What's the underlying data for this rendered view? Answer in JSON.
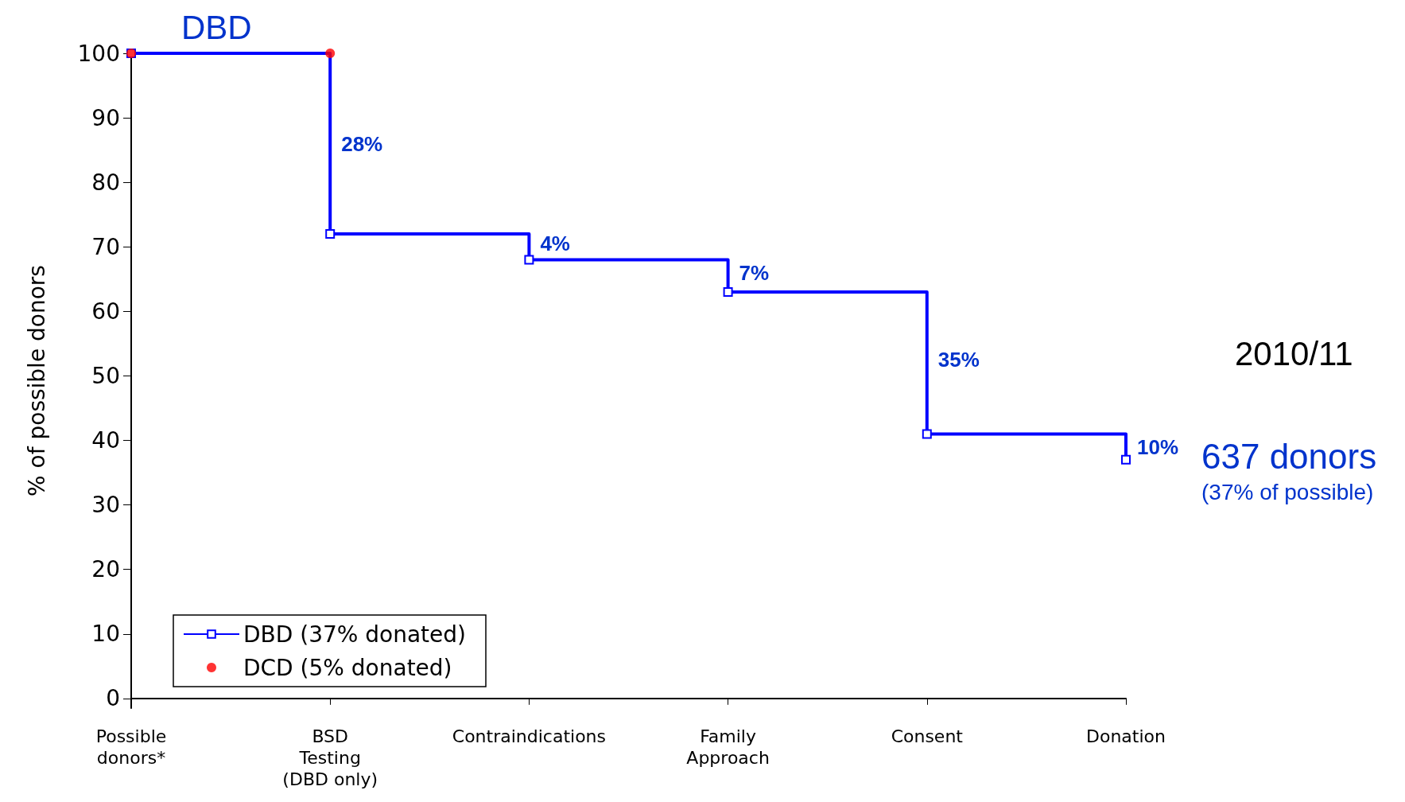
{
  "chart_data": {
    "type": "step",
    "title": "DBD",
    "subtitle": "2010/11",
    "ylabel": "% of possible donors",
    "categories": [
      "Possible\ndonors*",
      "BSD\nTesting\n(DBD only)",
      "Contraindications",
      "Family\nApproach",
      "Consent",
      "Donation"
    ],
    "series": [
      {
        "name": "DBD (37% donated)",
        "color": "#0000ff",
        "values": [
          100,
          72,
          68,
          63,
          41,
          37
        ],
        "marker": "square",
        "line_style": "solid"
      },
      {
        "name": "DCD (5% donated)",
        "type": "scatter",
        "color": "#ff0000",
        "values": [
          100,
          100,
          null,
          null,
          null,
          null
        ],
        "marker": "circle"
      }
    ],
    "ylim": [
      -1.5,
      100
    ],
    "yticks": [
      0,
      10,
      20,
      30,
      40,
      50,
      60,
      70,
      80,
      90,
      100
    ],
    "grid": false,
    "legend": "bottom left",
    "annotations": [
      {
        "text": "28%",
        "x": "BSD\nTesting\n(DBD only)",
        "y": 86
      },
      {
        "text": "4%",
        "x": "Contraindications",
        "y": 70.5
      },
      {
        "text": "7%",
        "x": "Family\nApproach",
        "y": 66
      },
      {
        "text": "35%",
        "x": "Consent",
        "y": 52.5
      },
      {
        "text": "10%",
        "x": "Donation",
        "y": 39
      },
      {
        "text": "637 donors",
        "x": "Donation",
        "y": 37.5
      },
      "(37% of possible)"
    ]
  }
}
